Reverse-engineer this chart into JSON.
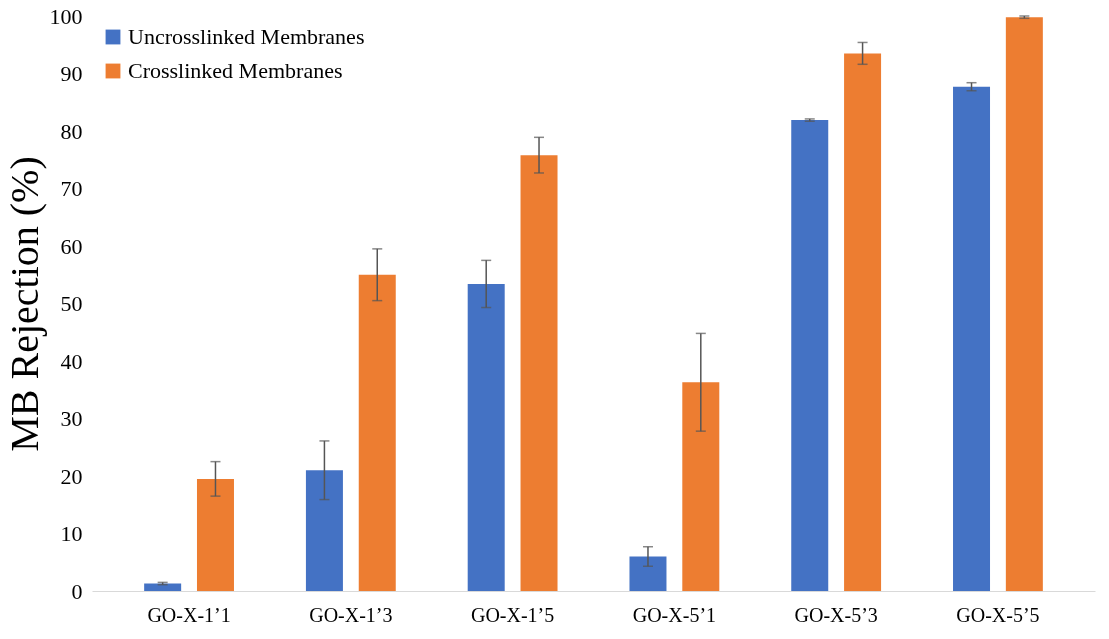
{
  "chart_data": {
    "type": "bar",
    "ylabel": "MB Rejection (%)",
    "categories": [
      "GO-X-1’1",
      "GO-X-1’3",
      "GO-X-1’5",
      "GO-X-5’1",
      "GO-X-5’3",
      "GO-X-5’5"
    ],
    "series": [
      {
        "name": "Uncrosslinked Membranes",
        "color": "#4472c4",
        "values": [
          1.3,
          21,
          53.4,
          6,
          81.9,
          87.7
        ],
        "errors": [
          0.2,
          5.1,
          4.1,
          1.7,
          0.2,
          0.7
        ]
      },
      {
        "name": "Crosslinked Membranes",
        "color": "#ed7d31",
        "values": [
          19.5,
          55,
          75.8,
          36.3,
          93.5,
          99.8
        ],
        "errors": [
          3,
          4.5,
          3.1,
          8.5,
          1.9,
          0.2
        ]
      }
    ],
    "ylim": [
      0,
      100
    ],
    "yticks": [
      0,
      10,
      20,
      30,
      40,
      50,
      60,
      70,
      80,
      90,
      100
    ],
    "grid": false,
    "legend": "top left"
  }
}
